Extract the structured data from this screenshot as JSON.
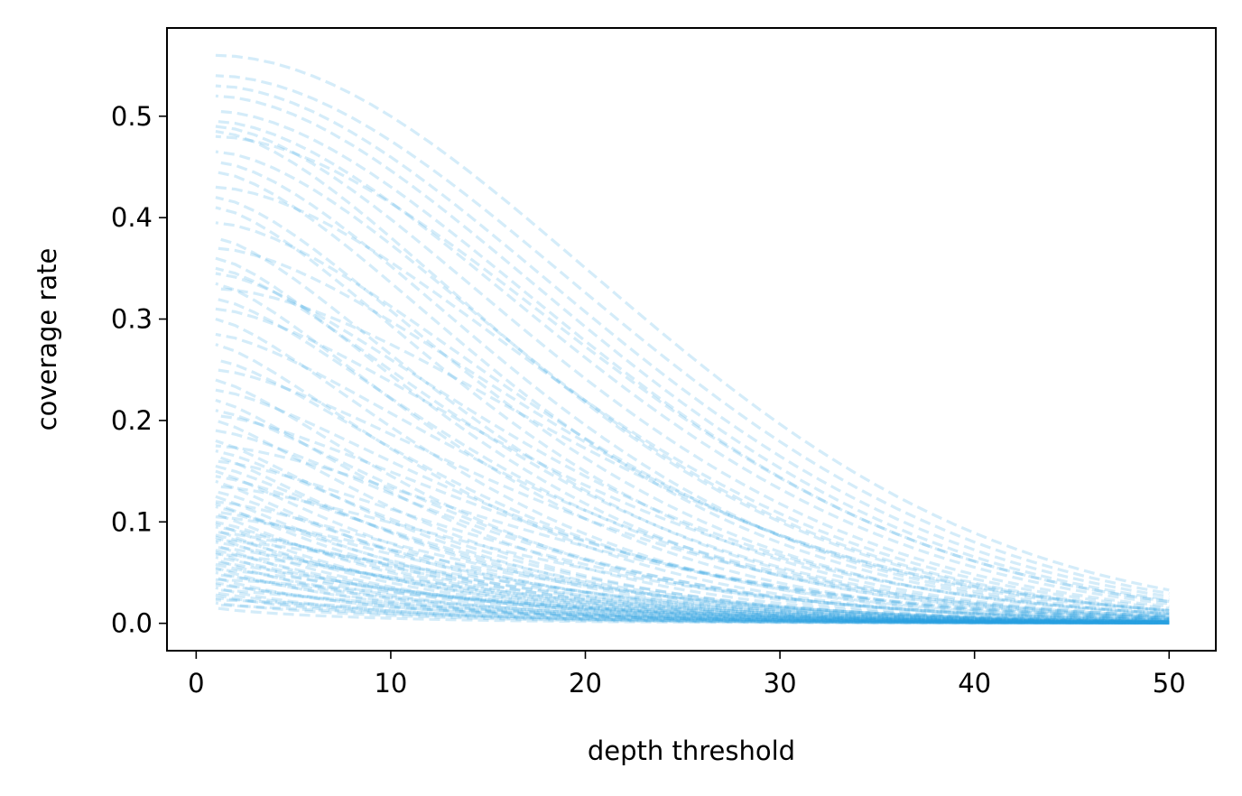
{
  "chart_data": {
    "type": "line",
    "title": "",
    "xlabel": "depth threshold",
    "ylabel": "coverage rate",
    "xlim": [
      -1.5,
      52.4
    ],
    "ylim": [
      -0.027,
      0.587
    ],
    "xticks": [
      0,
      10,
      20,
      30,
      40,
      50
    ],
    "xtick_labels": [
      "0",
      "10",
      "20",
      "30",
      "40",
      "50"
    ],
    "yticks": [
      0.0,
      0.1,
      0.2,
      0.3,
      0.4,
      0.5
    ],
    "ytick_labels": [
      "0.0",
      "0.1",
      "0.2",
      "0.3",
      "0.4",
      "0.5"
    ],
    "grid": false,
    "legend": "none",
    "line_style": "dashed",
    "color": "#2a9fe0",
    "line_opacity": 0.2,
    "series_params": [
      [
        0.56,
        28.3,
        1.9
      ],
      [
        0.54,
        27.5,
        1.85
      ],
      [
        0.53,
        26.6,
        1.8
      ],
      [
        0.52,
        25.9,
        1.78
      ],
      [
        0.505,
        25.5,
        1.76
      ],
      [
        0.495,
        24.7,
        1.72
      ],
      [
        0.49,
        23.4,
        1.65
      ],
      [
        0.485,
        21.8,
        1.6
      ],
      [
        0.48,
        26.1,
        1.8
      ],
      [
        0.465,
        22.6,
        1.65
      ],
      [
        0.455,
        21.1,
        1.6
      ],
      [
        0.445,
        20.4,
        1.55
      ],
      [
        0.43,
        24.0,
        1.7
      ],
      [
        0.42,
        19.7,
        1.5
      ],
      [
        0.41,
        18.9,
        1.48
      ],
      [
        0.395,
        22.3,
        1.6
      ],
      [
        0.38,
        18.2,
        1.45
      ],
      [
        0.37,
        23.1,
        1.62
      ],
      [
        0.36,
        17.6,
        1.42
      ],
      [
        0.35,
        19.0,
        1.45
      ],
      [
        0.345,
        20.9,
        1.5
      ],
      [
        0.335,
        16.9,
        1.4
      ],
      [
        0.33,
        24.5,
        1.7
      ],
      [
        0.32,
        18.3,
        1.42
      ],
      [
        0.31,
        21.6,
        1.52
      ],
      [
        0.3,
        16.4,
        1.38
      ],
      [
        0.285,
        19.8,
        1.45
      ],
      [
        0.275,
        15.8,
        1.35
      ],
      [
        0.26,
        17.3,
        1.38
      ],
      [
        0.25,
        20.6,
        1.48
      ],
      [
        0.24,
        15.2,
        1.32
      ],
      [
        0.23,
        18.5,
        1.4
      ],
      [
        0.22,
        14.7,
        1.3
      ],
      [
        0.21,
        16.7,
        1.35
      ],
      [
        0.205,
        19.9,
        1.45
      ],
      [
        0.2,
        14.2,
        1.28
      ],
      [
        0.19,
        17.6,
        1.38
      ],
      [
        0.18,
        13.8,
        1.25
      ],
      [
        0.175,
        21.4,
        1.5
      ],
      [
        0.17,
        15.3,
        1.3
      ],
      [
        0.165,
        13.4,
        1.22
      ],
      [
        0.16,
        18.8,
        1.42
      ],
      [
        0.155,
        14.6,
        1.26
      ],
      [
        0.15,
        12.9,
        1.2
      ],
      [
        0.145,
        16.1,
        1.32
      ],
      [
        0.14,
        12.5,
        1.18
      ],
      [
        0.135,
        20.2,
        1.46
      ],
      [
        0.13,
        14.0,
        1.22
      ],
      [
        0.125,
        12.1,
        1.15
      ],
      [
        0.12,
        17.2,
        1.35
      ],
      [
        0.118,
        11.8,
        1.12
      ],
      [
        0.115,
        13.5,
        1.2
      ],
      [
        0.11,
        15.9,
        1.3
      ],
      [
        0.108,
        11.4,
        1.1
      ],
      [
        0.105,
        18.4,
        1.4
      ],
      [
        0.1,
        13.0,
        1.18
      ],
      [
        0.098,
        11.0,
        1.08
      ],
      [
        0.095,
        14.8,
        1.25
      ],
      [
        0.092,
        10.7,
        1.06
      ],
      [
        0.09,
        16.6,
        1.32
      ],
      [
        0.087,
        12.4,
        1.15
      ],
      [
        0.085,
        10.4,
        1.04
      ],
      [
        0.082,
        19.3,
        1.44
      ],
      [
        0.08,
        13.8,
        1.2
      ],
      [
        0.077,
        10.1,
        1.02
      ],
      [
        0.075,
        15.4,
        1.28
      ],
      [
        0.072,
        11.9,
        1.12
      ],
      [
        0.07,
        9.8,
        1.0
      ],
      [
        0.068,
        17.8,
        1.36
      ],
      [
        0.065,
        12.7,
        1.15
      ],
      [
        0.063,
        9.5,
        0.98
      ],
      [
        0.06,
        14.3,
        1.22
      ],
      [
        0.058,
        11.2,
        1.08
      ],
      [
        0.055,
        9.2,
        0.96
      ],
      [
        0.053,
        16.2,
        1.3
      ],
      [
        0.05,
        10.8,
        1.05
      ],
      [
        0.048,
        13.1,
        1.16
      ],
      [
        0.045,
        8.9,
        0.94
      ],
      [
        0.043,
        18.9,
        1.42
      ],
      [
        0.04,
        10.3,
        1.02
      ],
      [
        0.038,
        12.0,
        1.12
      ],
      [
        0.035,
        8.6,
        0.92
      ],
      [
        0.033,
        14.9,
        1.25
      ],
      [
        0.03,
        9.9,
        1.0
      ],
      [
        0.028,
        8.3,
        0.9
      ],
      [
        0.025,
        11.5,
        1.08
      ],
      [
        0.023,
        17.0,
        1.34
      ],
      [
        0.02,
        9.4,
        0.97
      ],
      [
        0.018,
        13.6,
        1.2
      ],
      [
        0.015,
        8.0,
        0.88
      ]
    ]
  }
}
